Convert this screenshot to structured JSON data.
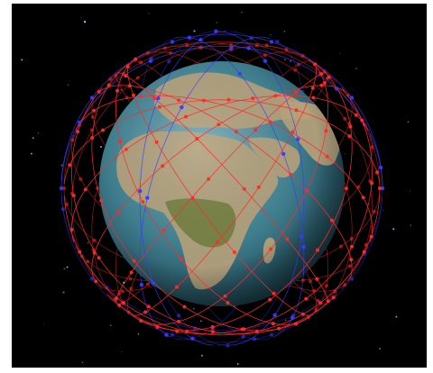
{
  "image": {
    "subject": "satellite-constellation-orbits-around-earth",
    "background_color": "#000000",
    "earth_ocean_color": "#3f7f8f",
    "earth_land_color": "#b8a27a",
    "earth_vegetation_color": "#6f7d3c",
    "primary_constellation_color": "#ff2a2a",
    "secondary_constellation_color": "#3a3aff"
  }
}
